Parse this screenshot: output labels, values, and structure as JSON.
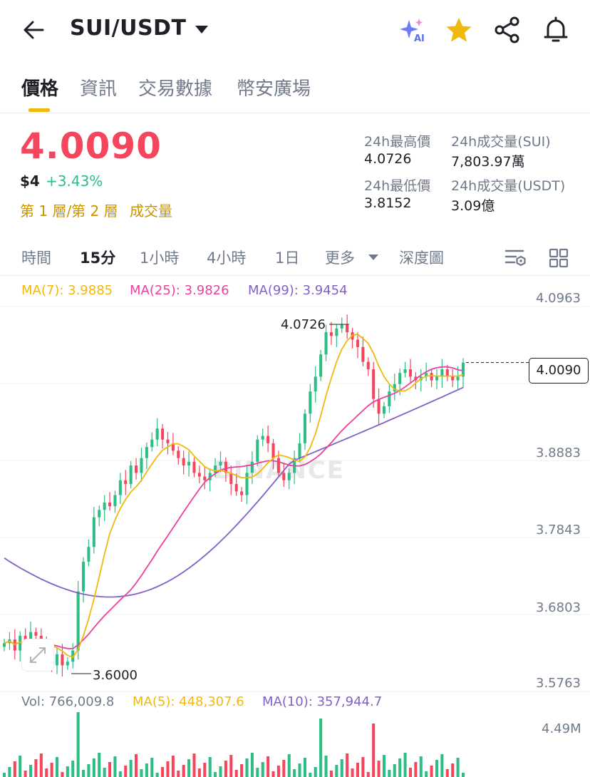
{
  "header": {
    "pair": "SUI/USDT",
    "icons": [
      "back-arrow-icon",
      "caret-down-icon",
      "ai-sparkle-icon",
      "star-icon",
      "share-icon",
      "bell-icon"
    ],
    "ai_badge": "AI"
  },
  "tabs": [
    {
      "label": "價格",
      "active": true
    },
    {
      "label": "資訊",
      "active": false
    },
    {
      "label": "交易數據",
      "active": false
    },
    {
      "label": "幣安廣場",
      "active": false
    }
  ],
  "ticker": {
    "price": "4.0090",
    "usd_value": "$4",
    "change": "+3.43%",
    "layer_label": "第 1 層/第 2 層",
    "volume_label": "成交量"
  },
  "stats": {
    "high_label": "24h最高價",
    "high_value": "4.0726",
    "low_label": "24h最低價",
    "low_value": "3.8152",
    "vol_base_label": "24h成交量(SUI)",
    "vol_base_value": "7,803.97萬",
    "vol_quote_label": "24h成交量(USDT)",
    "vol_quote_value": "3.09億"
  },
  "intervals": {
    "items": [
      "時間",
      "15分",
      "1小時",
      "4小時",
      "1日",
      "更多",
      "深度圖"
    ],
    "active": "15分"
  },
  "indicators": {
    "ma7": "MA(7): 3.9885",
    "ma25": "MA(25): 3.9826",
    "ma99": "MA(99): 3.9454",
    "vol": "Vol: 766,009.8",
    "vol_ma5": "MA(5): 448,307.6",
    "vol_ma10": "MA(10): 357,944.7"
  },
  "colors": {
    "up": "#2ebd85",
    "down": "#f6465d",
    "accent": "#f0b90b",
    "ma7": "#f0b90b",
    "ma25": "#e9429e",
    "ma99": "#8160c8"
  },
  "watermark": "BINANCE",
  "chart_data": {
    "type": "candlestick",
    "interval": "15m",
    "price_axis_ticks": [
      "4.0963",
      "3.8883",
      "3.7843",
      "3.6803",
      "3.5763"
    ],
    "current_price_label": "4.0090",
    "high_annotation": "4.0726",
    "low_annotation": "3.6000",
    "volume_axis_tick": "4.49M",
    "ylim": [
      3.5763,
      4.0963
    ],
    "closes": [
      3.63,
      3.635,
      3.62,
      3.64,
      3.63,
      3.645,
      3.64,
      3.625,
      3.61,
      3.6,
      3.615,
      3.6,
      3.605,
      3.62,
      3.7,
      3.74,
      3.76,
      3.8,
      3.81,
      3.82,
      3.815,
      3.83,
      3.85,
      3.845,
      3.87,
      3.86,
      3.88,
      3.895,
      3.905,
      3.92,
      3.905,
      3.9,
      3.89,
      3.88,
      3.87,
      3.875,
      3.86,
      3.855,
      3.85,
      3.86,
      3.87,
      3.875,
      3.86,
      3.845,
      3.835,
      3.83,
      3.86,
      3.875,
      3.905,
      3.91,
      3.9,
      3.88,
      3.86,
      3.85,
      3.86,
      3.88,
      3.9,
      3.94,
      3.97,
      3.99,
      4.02,
      4.05,
      4.045,
      4.055,
      4.06,
      4.05,
      4.04,
      4.03,
      4.01,
      4.0,
      3.96,
      3.94,
      3.95,
      3.97,
      3.98,
      3.995,
      4.0,
      3.99,
      3.985,
      3.99,
      3.995,
      3.985,
      3.99,
      4.0,
      3.99,
      3.985,
      3.99,
      4.009
    ],
    "ma7_last": 3.9885,
    "ma25_last": 3.9826,
    "ma99_last": 3.9454,
    "volume_last": 766009.8
  }
}
